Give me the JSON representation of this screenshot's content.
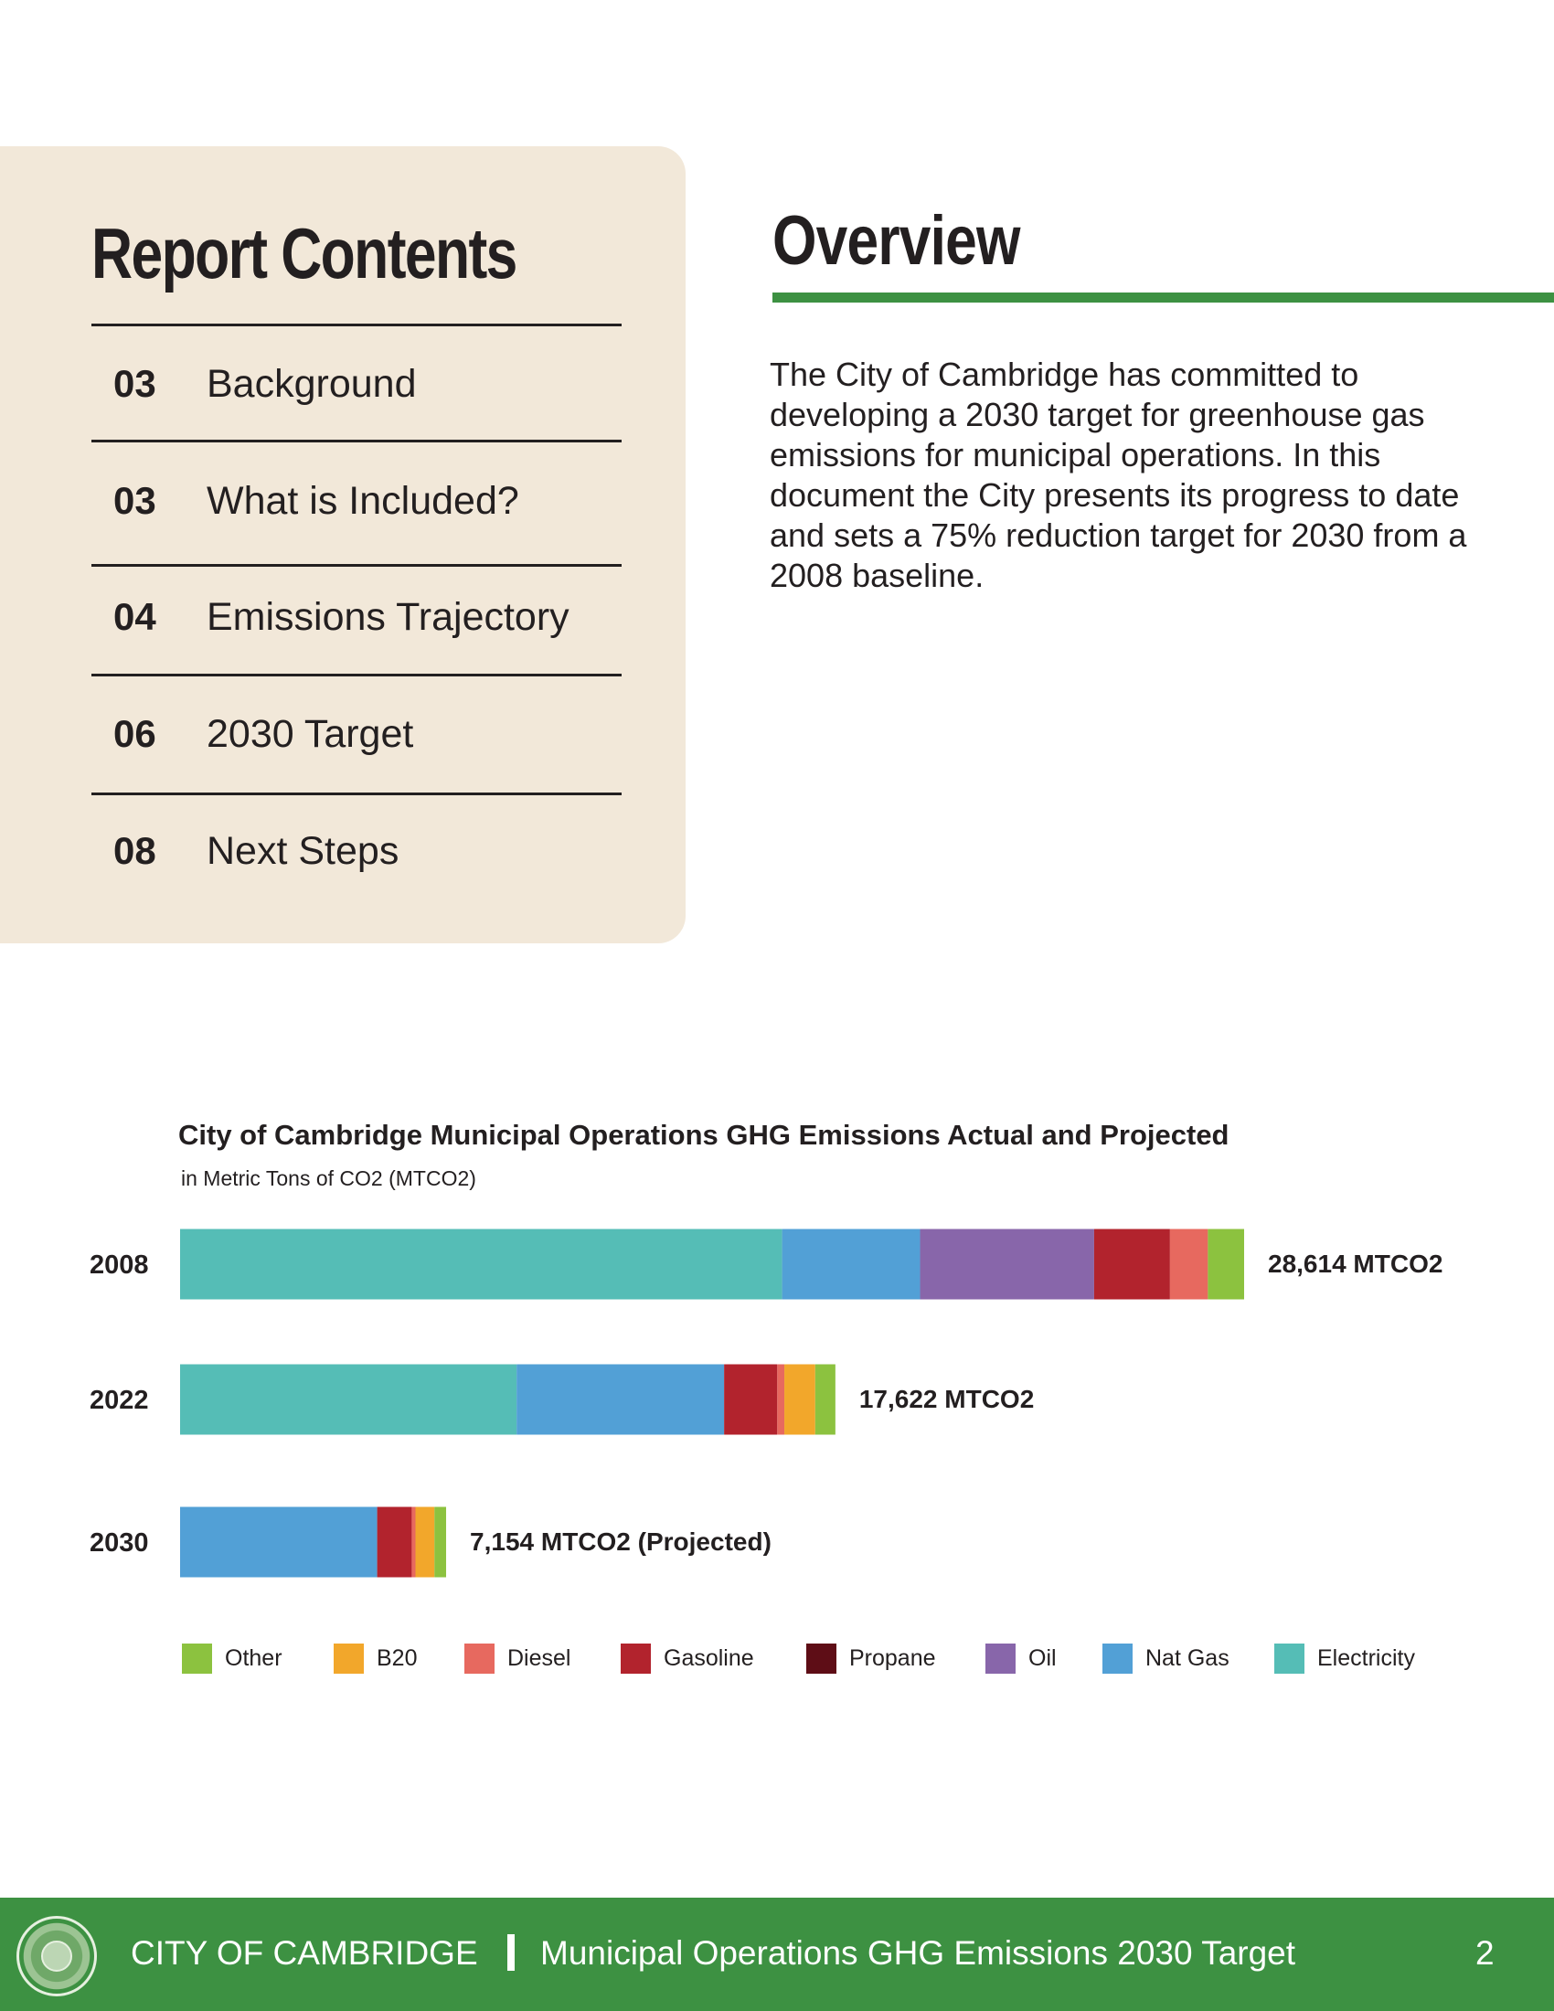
{
  "contents": {
    "title": "Report Contents",
    "items": [
      {
        "num": "03",
        "label": "Background"
      },
      {
        "num": "03",
        "label": "What is Included?"
      },
      {
        "num": "04",
        "label": "Emissions Trajectory"
      },
      {
        "num": "06",
        "label": "2030 Target"
      },
      {
        "num": "08",
        "label": "Next Steps"
      }
    ]
  },
  "overview": {
    "title": "Overview",
    "body": "The City of Cambridge has committed to developing a 2030 target for greenhouse gas emissions for municipal operations. In this document the City presents its progress to date and sets a 75% reduction target for 2030 from a 2008 baseline."
  },
  "chart_data": {
    "type": "bar",
    "orientation": "horizontal",
    "stacked": true,
    "title": "City of Cambridge Municipal Operations GHG Emissions Actual and Projected",
    "subtitle": "in Metric Tons of CO2 (MTCO2)",
    "categories": [
      "2008",
      "2022",
      "2030"
    ],
    "totals": [
      28614,
      17622,
      7154
    ],
    "total_labels": [
      "28,614 MTCO2",
      "17,622 MTCO2",
      "7,154 MTCO2  (Projected)"
    ],
    "series": [
      {
        "name": "Electricity",
        "color": "#55bdb6",
        "values": [
          16190,
          9050,
          0
        ]
      },
      {
        "name": "Nat Gas",
        "color": "#52a0d6",
        "values": [
          3710,
          5580,
          5300
        ]
      },
      {
        "name": "Oil",
        "color": "#8866aa",
        "values": [
          4680,
          0,
          0
        ]
      },
      {
        "name": "Propane",
        "color": "#5e0d16",
        "values": [
          0,
          0,
          0
        ]
      },
      {
        "name": "Gasoline",
        "color": "#b2232d",
        "values": [
          2040,
          1430,
          930
        ]
      },
      {
        "name": "Diesel",
        "color": "#e7695f",
        "values": [
          1020,
          190,
          100
        ]
      },
      {
        "name": "B20",
        "color": "#f2a72b",
        "values": [
          0,
          830,
          510
        ]
      },
      {
        "name": "Other",
        "color": "#8cc23f",
        "values": [
          974,
          542,
          314
        ]
      }
    ],
    "legend_order": [
      "Other",
      "B20",
      "Diesel",
      "Gasoline",
      "Propane",
      "Oil",
      "Nat Gas",
      "Electricity"
    ],
    "legend_position": "bottom",
    "grid": false
  },
  "footer": {
    "org": "CITY OF CAMBRIDGE",
    "doc_title": "Municipal Operations GHG Emissions 2030 Target",
    "page": "2"
  }
}
